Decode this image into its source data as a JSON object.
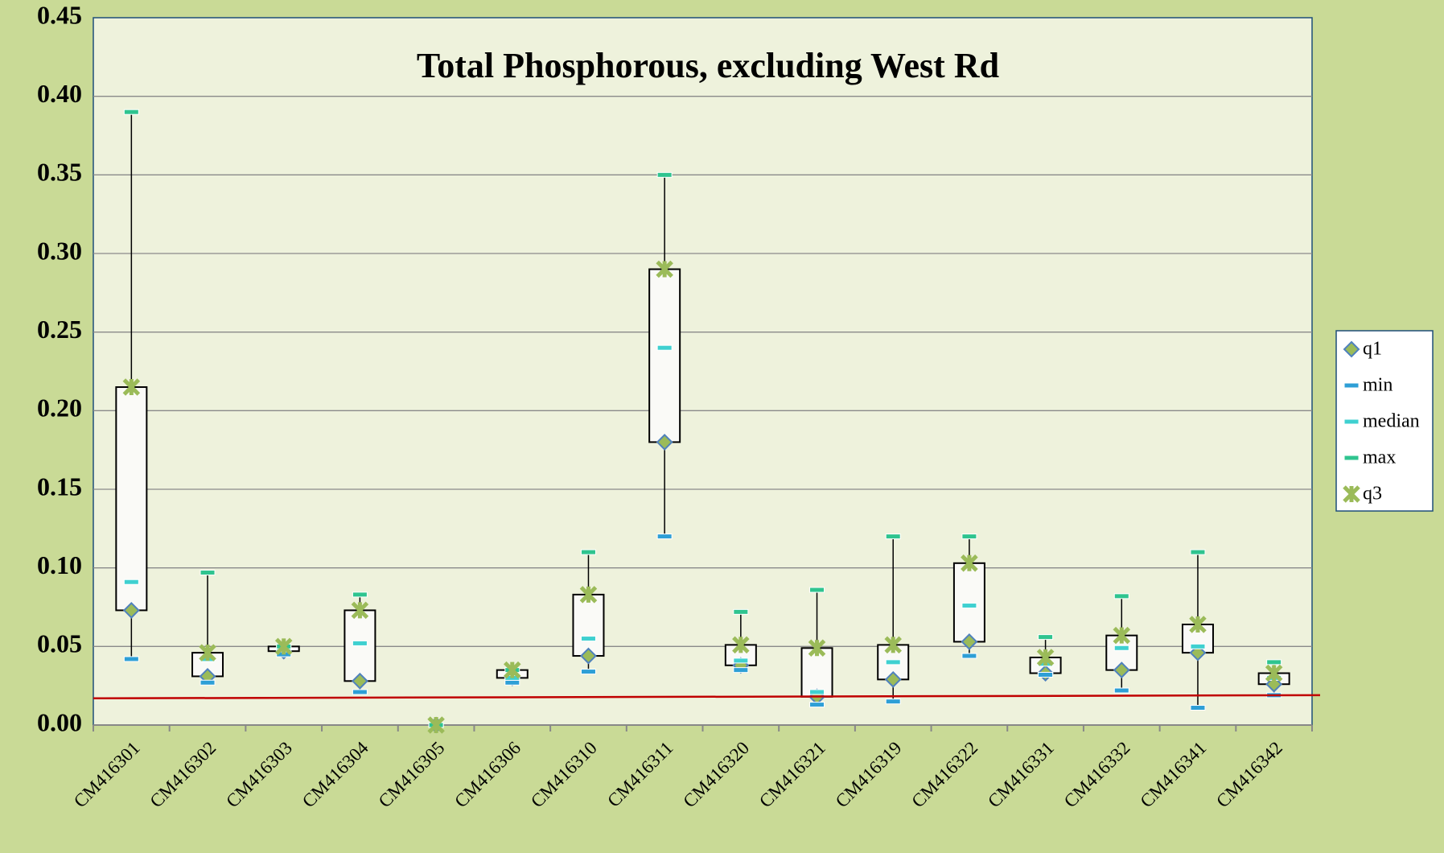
{
  "chart_data": {
    "type": "box",
    "title": "Total Phosphorous, excluding West Rd",
    "categories": [
      "CM416301",
      "CM416302",
      "CM416303",
      "CM416304",
      "CM416305",
      "CM416306",
      "CM416310",
      "CM416311",
      "CM416320",
      "CM416321",
      "CM416319",
      "CM416322",
      "CM416331",
      "CM416332",
      "CM416341",
      "CM416342"
    ],
    "series": [
      {
        "name": "q1",
        "color": "#4f81bd",
        "marker": "diamond",
        "values": [
          0.073,
          0.031,
          0.047,
          0.028,
          0,
          0.03,
          0.044,
          0.18,
          0.038,
          0.018,
          0.029,
          0.053,
          0.033,
          0.035,
          0.046,
          0.026
        ]
      },
      {
        "name": "min",
        "color": "#2e9fd6",
        "marker": "dash",
        "values": [
          0.042,
          0.027,
          0.045,
          0.021,
          0,
          0.027,
          0.034,
          0.12,
          0.035,
          0.013,
          0.015,
          0.044,
          0.032,
          0.022,
          0.011,
          0.019
        ]
      },
      {
        "name": "median",
        "color": "#3fd0d0",
        "marker": "dash",
        "values": [
          0.091,
          0.042,
          0.049,
          0.052,
          0,
          0.03,
          0.055,
          0.24,
          0.041,
          0.021,
          0.04,
          0.076,
          0.039,
          0.049,
          0.05,
          0.03
        ]
      },
      {
        "name": "max",
        "color": "#2fc48f",
        "marker": "dash",
        "values": [
          0.39,
          0.097,
          0.05,
          0.083,
          0,
          0.035,
          0.11,
          0.35,
          0.072,
          0.086,
          0.12,
          0.12,
          0.056,
          0.082,
          0.11,
          0.04
        ]
      },
      {
        "name": "q3",
        "color": "#9bbb59",
        "marker": "star",
        "values": [
          0.215,
          0.046,
          0.05,
          0.073,
          0,
          0.035,
          0.083,
          0.29,
          0.051,
          0.049,
          0.051,
          0.103,
          0.043,
          0.057,
          0.064,
          0.033
        ]
      }
    ],
    "reference_line": {
      "color": "#c00000",
      "values": [
        0.017,
        0.019
      ]
    },
    "ylim": [
      0,
      0.45
    ],
    "yticks": [
      {
        "value": 0,
        "label": "0.00"
      },
      {
        "value": 0.05,
        "label": "0.05"
      },
      {
        "value": 0.1,
        "label": "0.10"
      },
      {
        "value": 0.15,
        "label": "0.15"
      },
      {
        "value": 0.2,
        "label": "0.20"
      },
      {
        "value": 0.25,
        "label": "0.25"
      },
      {
        "value": 0.3,
        "label": "0.30"
      },
      {
        "value": 0.35,
        "label": "0.35"
      },
      {
        "value": 0.4,
        "label": "0.40"
      },
      {
        "value": 0.45,
        "label": "0.45"
      }
    ],
    "grid": true,
    "legend": "right"
  }
}
